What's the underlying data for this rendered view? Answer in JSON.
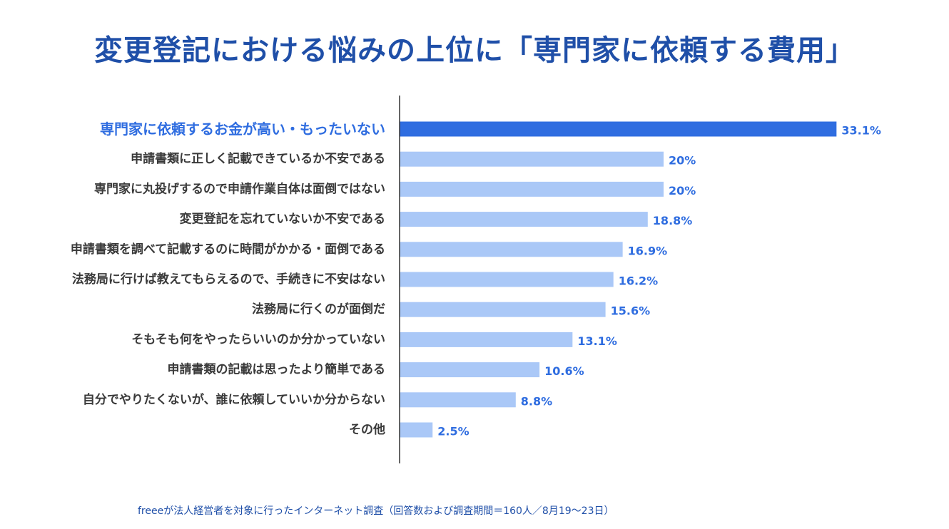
{
  "title": "変更登記における悩みの上位に「専門家に依頼する費用」",
  "footnote": "freeeが法人経営者を対象に行ったインターネット調査（回答数および調査期間＝160人／8月19〜23日）",
  "colors": {
    "highlight_bar": "#2f6de0",
    "bar": "#aac8f7",
    "highlight_label": "#2f6de0",
    "label": "#3a3a3a",
    "value": "#2f6de0",
    "axis": "#333333"
  },
  "chart_data": {
    "type": "bar",
    "orientation": "horizontal",
    "categories": [
      "専門家に依頼するお金が高い・もったいない",
      "申請書類に正しく記載できているか不安である",
      "専門家に丸投げするので申請作業自体は面倒ではない",
      "変更登記を忘れていないか不安である",
      "申請書類を調べて記載するのに時間がかかる・面倒である",
      "法務局に行けば教えてもらえるので、手続きに不安はない",
      "法務局に行くのが面倒だ",
      "そもそも何をやったらいいのか分かっていない",
      "申請書類の記載は思ったより簡単である",
      "自分でやりたくないが、誰に依頼していいか分からない",
      "その他"
    ],
    "values": [
      33.1,
      20,
      20,
      18.8,
      16.9,
      16.2,
      15.6,
      13.1,
      10.6,
      8.8,
      2.5
    ],
    "value_labels": [
      "33.1%",
      "20%",
      "20%",
      "18.8%",
      "16.9%",
      "16.2%",
      "15.6%",
      "13.1%",
      "10.6%",
      "8.8%",
      "2.5%"
    ],
    "highlight_index": 0,
    "unit": "%",
    "grid": false,
    "legend": "none"
  }
}
